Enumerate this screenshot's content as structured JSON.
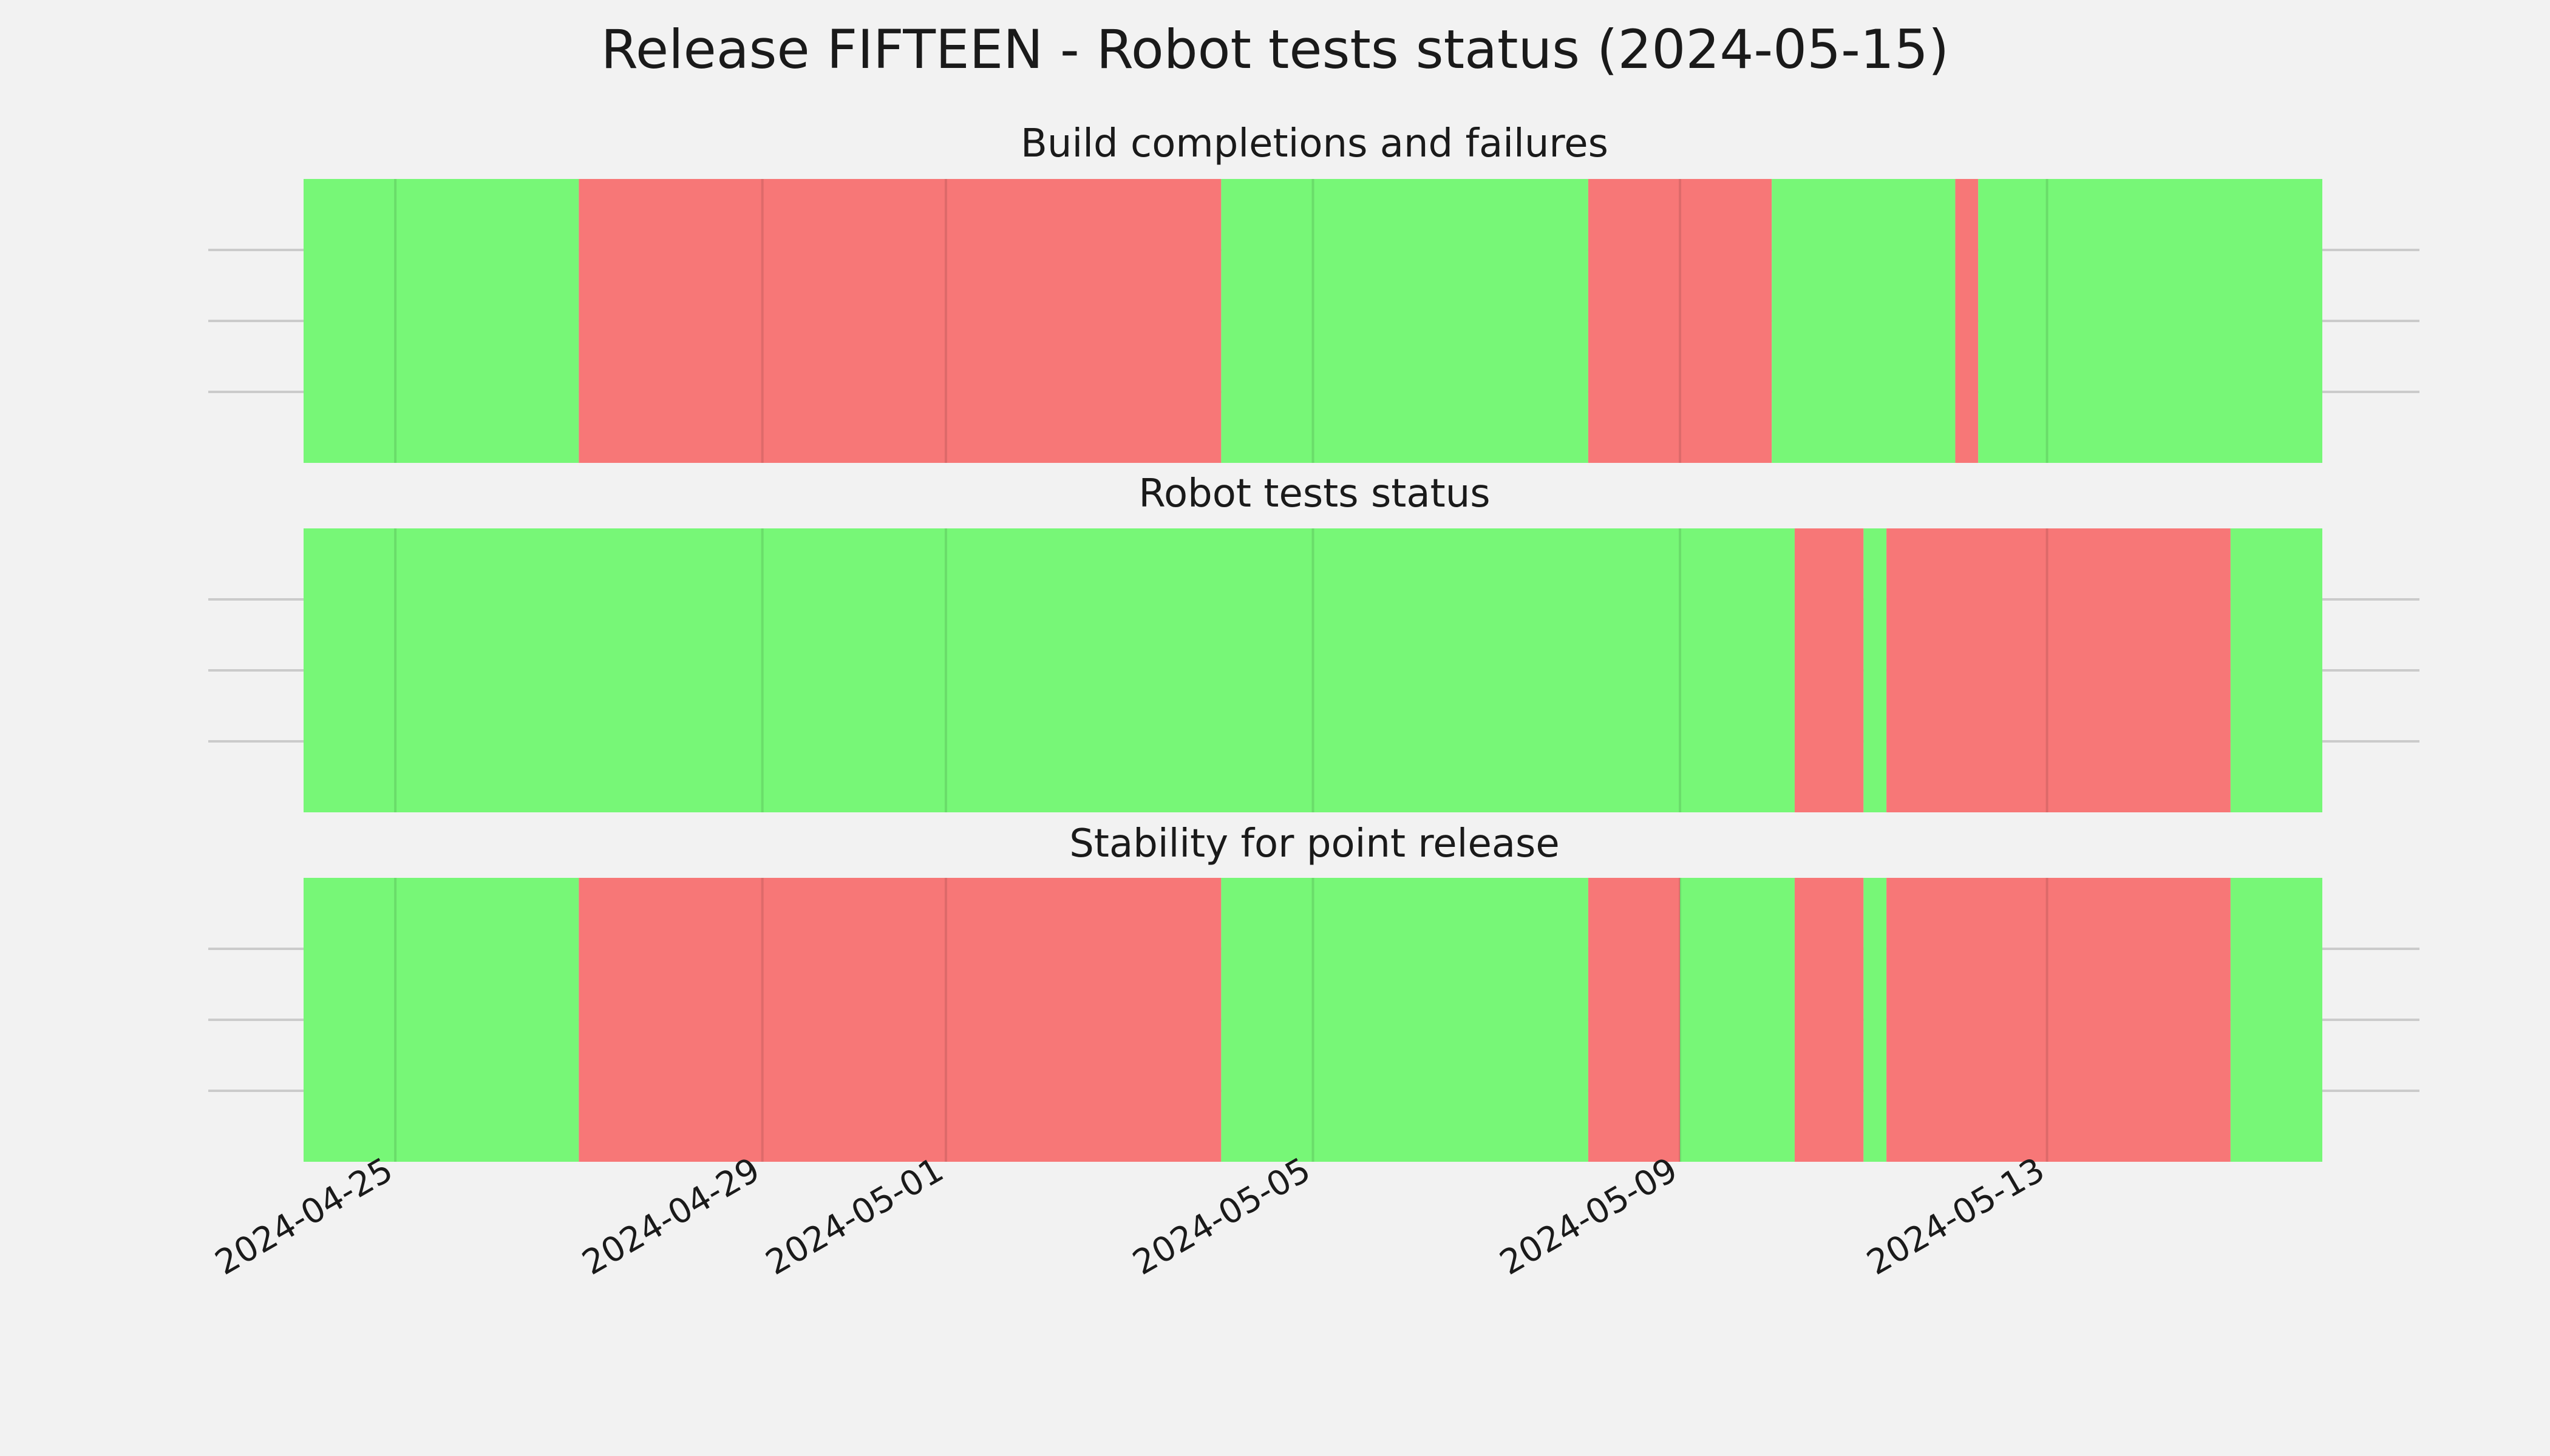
{
  "chart_data": {
    "type": "bar",
    "title": "Release FIFTEEN - Robot tests status (2024-05-15)",
    "x_type": "date",
    "xlim": [
      "2024-04-24T00:00",
      "2024-05-16T00:00"
    ],
    "xticks": [
      "2024-04-25",
      "2024-04-29",
      "2024-05-01",
      "2024-05-05",
      "2024-05-09",
      "2024-05-13"
    ],
    "grid": true,
    "colors": {
      "pass": "#77f777",
      "fail": "#f77777"
    },
    "panels": [
      {
        "name": "build",
        "title": "Build completions and failures",
        "segments": [
          {
            "start": "2024-04-24T00:00",
            "end": "2024-04-27T00:00",
            "status": "pass"
          },
          {
            "start": "2024-04-27T00:00",
            "end": "2024-05-04T00:00",
            "status": "fail"
          },
          {
            "start": "2024-05-04T00:00",
            "end": "2024-05-08T00:00",
            "status": "pass"
          },
          {
            "start": "2024-05-08T00:00",
            "end": "2024-05-10T00:00",
            "status": "fail"
          },
          {
            "start": "2024-05-10T00:00",
            "end": "2024-05-12T00:00",
            "status": "pass"
          },
          {
            "start": "2024-05-12T00:00",
            "end": "2024-05-12T06:00",
            "status": "fail"
          },
          {
            "start": "2024-05-12T06:00",
            "end": "2024-05-16T00:00",
            "status": "pass"
          }
        ]
      },
      {
        "name": "robot",
        "title": "Robot tests status",
        "segments": [
          {
            "start": "2024-04-24T00:00",
            "end": "2024-05-10T06:00",
            "status": "pass"
          },
          {
            "start": "2024-05-10T06:00",
            "end": "2024-05-11T00:00",
            "status": "fail"
          },
          {
            "start": "2024-05-11T00:00",
            "end": "2024-05-11T06:00",
            "status": "pass"
          },
          {
            "start": "2024-05-11T06:00",
            "end": "2024-05-15T00:00",
            "status": "fail"
          },
          {
            "start": "2024-05-15T00:00",
            "end": "2024-05-16T00:00",
            "status": "pass"
          }
        ]
      },
      {
        "name": "stability",
        "title": "Stability for point release",
        "segments": [
          {
            "start": "2024-04-24T00:00",
            "end": "2024-04-27T00:00",
            "status": "pass"
          },
          {
            "start": "2024-04-27T00:00",
            "end": "2024-05-04T00:00",
            "status": "fail"
          },
          {
            "start": "2024-05-04T00:00",
            "end": "2024-05-08T00:00",
            "status": "pass"
          },
          {
            "start": "2024-05-08T00:00",
            "end": "2024-05-09T00:00",
            "status": "fail"
          },
          {
            "start": "2024-05-09T00:00",
            "end": "2024-05-10T06:00",
            "status": "pass"
          },
          {
            "start": "2024-05-10T06:00",
            "end": "2024-05-11T00:00",
            "status": "fail"
          },
          {
            "start": "2024-05-11T00:00",
            "end": "2024-05-11T06:00",
            "status": "pass"
          },
          {
            "start": "2024-05-11T06:00",
            "end": "2024-05-15T00:00",
            "status": "fail"
          },
          {
            "start": "2024-05-15T00:00",
            "end": "2024-05-16T00:00",
            "status": "pass"
          }
        ]
      }
    ]
  }
}
